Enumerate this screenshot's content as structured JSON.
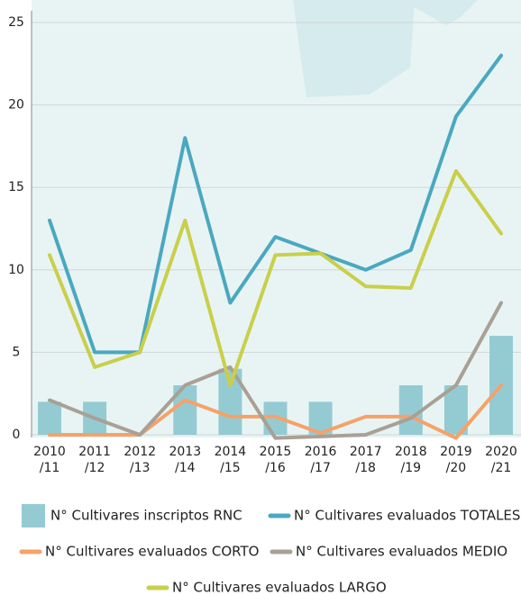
{
  "chart_data": {
    "type": "line",
    "categories": [
      [
        "2010",
        "/11"
      ],
      [
        "2011",
        "/12"
      ],
      [
        "2012",
        "/13"
      ],
      [
        "2013",
        "/14"
      ],
      [
        "2014",
        "/15"
      ],
      [
        "2015",
        "/16"
      ],
      [
        "2016",
        "/17"
      ],
      [
        "2017",
        "/18"
      ],
      [
        "2018",
        "/19"
      ],
      [
        "2019",
        "/20"
      ],
      [
        "2020",
        "/21"
      ]
    ],
    "series": [
      {
        "name": "N° Cultivares inscriptos RNC",
        "type": "bar",
        "color": "#94cbd3",
        "values": [
          2,
          2,
          0,
          3,
          4,
          2,
          2,
          0,
          3,
          3,
          6
        ]
      },
      {
        "name": "N° Cultivares evaluados TOTALES",
        "type": "line",
        "color": "#4aa8c0",
        "values": [
          13,
          5,
          5,
          18,
          8,
          12,
          11,
          10,
          11.2,
          19.3,
          23
        ]
      },
      {
        "name": "N° Cultivares evaluados CORTO",
        "type": "line",
        "color": "#f5a26a",
        "values": [
          0,
          0,
          0,
          2.1,
          1.1,
          1.1,
          0.1,
          1.1,
          1.1,
          -0.2,
          3
        ]
      },
      {
        "name": "N° Cultivares evaluados MEDIO",
        "type": "line",
        "color": "#a9a095",
        "values": [
          2.1,
          1,
          0,
          3,
          4.1,
          -0.2,
          -0.1,
          0,
          1,
          3,
          8
        ]
      },
      {
        "name": "N° Cultivares evaluados LARGO",
        "type": "line",
        "color": "#c9cf4a",
        "values": [
          10.9,
          4.1,
          5,
          13,
          3,
          10.9,
          11,
          9,
          8.9,
          16,
          12.2
        ]
      }
    ],
    "ylim": [
      0,
      25
    ],
    "yticks": [
      0,
      5,
      10,
      15,
      20,
      25
    ],
    "grid": true
  }
}
